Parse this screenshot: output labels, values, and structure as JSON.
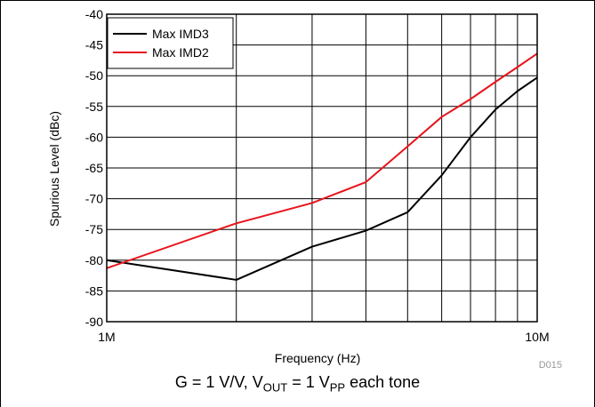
{
  "chart_data": {
    "type": "line",
    "xlabel": "Frequency (Hz)",
    "ylabel": "Spurious Level (dBc)",
    "x_scale": "log",
    "xlim": [
      1000000,
      10000000
    ],
    "ylim": [
      -90,
      -40
    ],
    "x_tick_labels": [
      {
        "value": 1000000,
        "label": "1M"
      },
      {
        "value": 10000000,
        "label": "10M"
      }
    ],
    "x_minor_ticks": [
      2000000,
      3000000,
      4000000,
      5000000,
      6000000,
      7000000,
      8000000,
      9000000
    ],
    "y_ticks": [
      -90,
      -85,
      -80,
      -75,
      -70,
      -65,
      -60,
      -55,
      -50,
      -45,
      -40
    ],
    "grid": true,
    "legend_position": "top-left",
    "series": [
      {
        "name": "Max IMD3",
        "color": "#000000",
        "x": [
          1000000,
          2000000,
          3000000,
          4000000,
          5000000,
          6000000,
          7000000,
          8000000,
          9000000,
          10000000
        ],
        "y": [
          -80,
          -83.2,
          -77.8,
          -75.2,
          -72.2,
          -66.2,
          -60,
          -55.5,
          -52.5,
          -50.3
        ]
      },
      {
        "name": "Max IMD2",
        "color": "#e8141c",
        "x": [
          1000000,
          2000000,
          3000000,
          4000000,
          5000000,
          6000000,
          7000000,
          8000000,
          9000000,
          10000000
        ],
        "y": [
          -81.3,
          -74,
          -70.7,
          -67.3,
          -61.5,
          -56.7,
          -53.8,
          -51,
          -48.6,
          -46.4
        ]
      }
    ]
  },
  "caption": {
    "prefix": "G = 1 V/V, V",
    "out_sub": "OUT",
    "middle": " = 1 V",
    "pp_sub": "PP",
    "suffix": " each tone"
  },
  "figure_id": "D015"
}
